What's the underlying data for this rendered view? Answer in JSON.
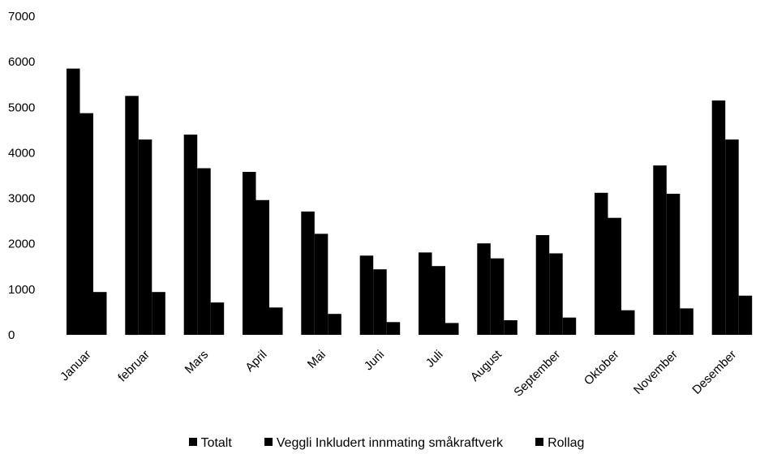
{
  "chart_data": {
    "type": "bar",
    "title": "",
    "xlabel": "",
    "ylabel": "",
    "ylim": [
      0,
      7000
    ],
    "yticks": [
      0,
      1000,
      2000,
      3000,
      4000,
      5000,
      6000,
      7000
    ],
    "grid": false,
    "legend_position": "bottom",
    "bar_color": "#000000",
    "categories": [
      "Januar",
      "februar",
      "Mars",
      "April",
      "Mai",
      "Juni",
      "Juli",
      "August",
      "September",
      "Oktober",
      "November",
      "Desember"
    ],
    "series": [
      {
        "name": "Totalt",
        "values": [
          5850,
          5250,
          4400,
          3580,
          2710,
          1740,
          1810,
          2010,
          2190,
          3120,
          3720,
          5150
        ]
      },
      {
        "name": "Veggli Inkludert innmating småkraftverk",
        "values": [
          4870,
          4290,
          3660,
          2960,
          2220,
          1440,
          1510,
          1680,
          1790,
          2570,
          3100,
          4290
        ]
      },
      {
        "name": "Rollag",
        "values": [
          940,
          940,
          710,
          600,
          460,
          280,
          260,
          320,
          380,
          540,
          580,
          860
        ]
      }
    ]
  }
}
